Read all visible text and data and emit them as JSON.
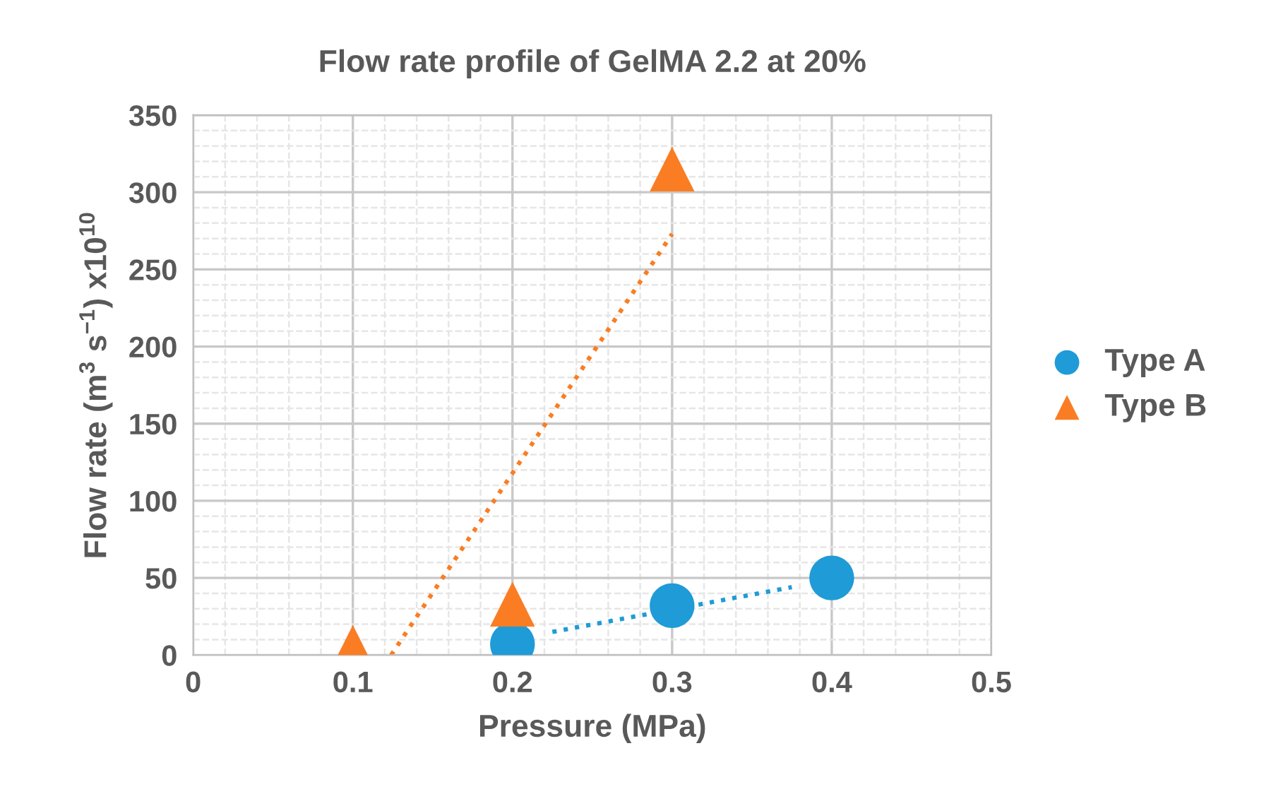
{
  "chart_data": {
    "type": "scatter",
    "title": "Flow rate profile of GelMA 2.2 at 20%",
    "xlabel": "Pressure (MPa)",
    "ylabel": "Flow rate (m$^{3}$ s$^{−1}$) x10$^{10}$",
    "xlim": [
      0,
      0.5
    ],
    "xticks": [
      0,
      0.1,
      0.2,
      0.3,
      0.4,
      0.5
    ],
    "ylim": [
      0,
      350
    ],
    "yticks": [
      0,
      50,
      100,
      150,
      200,
      250,
      300,
      350
    ],
    "grid": true,
    "legend": "right",
    "series": [
      {
        "name": "Type A",
        "color": "#1f9bd7",
        "marker": "circle",
        "x": [
          0.2,
          0.3,
          0.4
        ],
        "values": [
          7,
          32,
          50
        ]
      },
      {
        "name": "Type B",
        "color": "#fa7d23",
        "marker": "triangle",
        "x": [
          0.1,
          0.2,
          0.3
        ],
        "values": [
          5,
          33,
          315
        ]
      },
      {
        "type": "line",
        "color": "#1f9bd7",
        "line_style": "dotted",
        "x": [
          0.225,
          0.375
        ],
        "values": [
          15,
          44
        ]
      },
      {
        "type": "line",
        "color": "#fa7d23",
        "line_style": "dotted",
        "x": [
          0.124,
          0.3
        ],
        "values": [
          0,
          273
        ]
      }
    ]
  }
}
